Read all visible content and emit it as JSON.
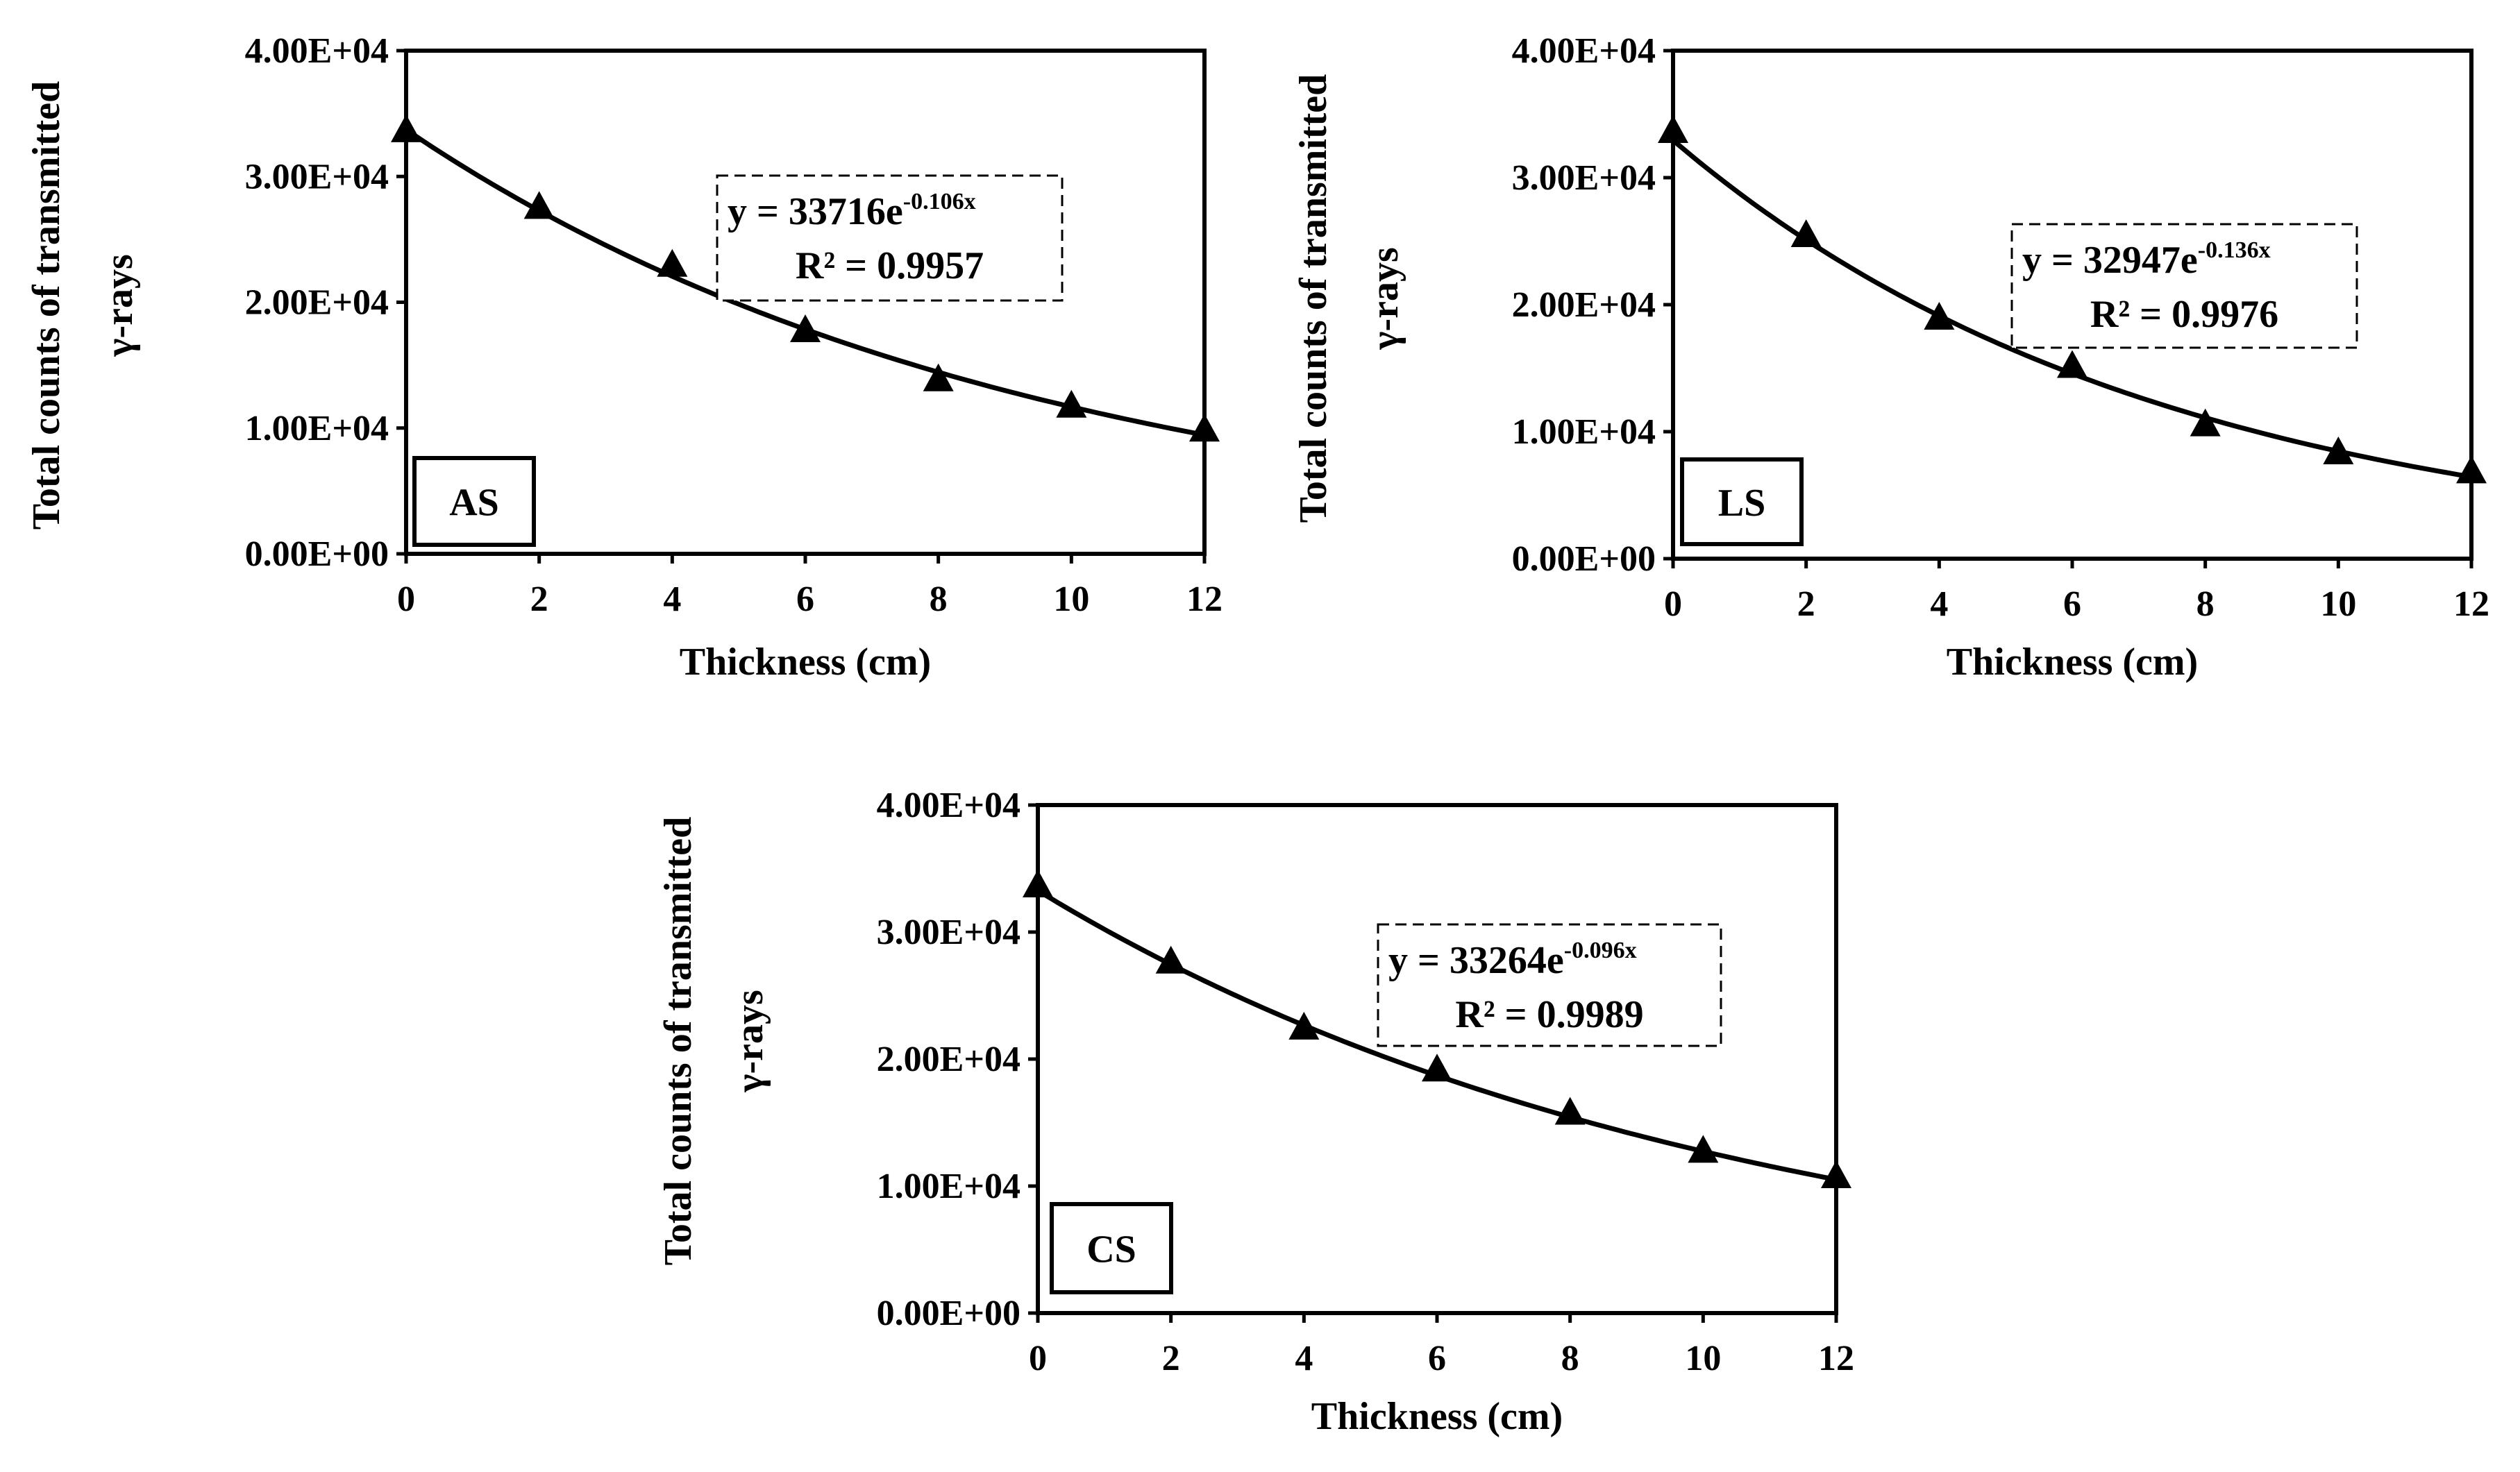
{
  "chart_data": [
    {
      "type": "scatter",
      "panel_label": "AS",
      "xlabel": "Thickness (cm)",
      "ylabel_line1": "Total counts of transmitted",
      "ylabel_line2": "γ-rays",
      "x": [
        0,
        2,
        4,
        6,
        8,
        10,
        12
      ],
      "y": [
        33500,
        27400,
        22800,
        17600,
        13700,
        11600,
        9700
      ],
      "xlim": [
        0,
        12
      ],
      "ylim": [
        0,
        40000
      ],
      "xticks": [
        "0",
        "2",
        "4",
        "6",
        "8",
        "10",
        "12"
      ],
      "yticks": [
        "0.00E+00",
        "1.00E+04",
        "2.00E+04",
        "3.00E+04",
        "4.00E+04"
      ],
      "marker": "triangle",
      "fit": {
        "type": "exponential",
        "a": 33716,
        "b": -0.106
      },
      "eq_base": "y = 33716e",
      "eq_exp": "-0.106x",
      "r2_text": "R² = 0.9957"
    },
    {
      "type": "scatter",
      "panel_label": "LS",
      "xlabel": "Thickness (cm)",
      "ylabel_line1": "Total counts of transmitted",
      "ylabel_line2": "γ-rays",
      "x": [
        0,
        2,
        4,
        6,
        8,
        10,
        12
      ],
      "y": [
        33500,
        25300,
        18800,
        15000,
        10400,
        8200,
        6700
      ],
      "xlim": [
        0,
        12
      ],
      "ylim": [
        0,
        40000
      ],
      "xticks": [
        "0",
        "2",
        "4",
        "6",
        "8",
        "10",
        "12"
      ],
      "yticks": [
        "0.00E+00",
        "1.00E+04",
        "2.00E+04",
        "3.00E+04",
        "4.00E+04"
      ],
      "marker": "triangle",
      "fit": {
        "type": "exponential",
        "a": 32947,
        "b": -0.136
      },
      "eq_base": "y = 32947e",
      "eq_exp": "-0.136x",
      "r2_text": "R² = 0.9976"
    },
    {
      "type": "scatter",
      "panel_label": "CS",
      "xlabel": "Thickness (cm)",
      "ylabel_line1": "Total counts of transmitted",
      "ylabel_line2": "γ-rays",
      "x": [
        0,
        2,
        4,
        6,
        8,
        10,
        12
      ],
      "y": [
        33500,
        27500,
        22300,
        19000,
        15600,
        12600,
        10600
      ],
      "xlim": [
        0,
        12
      ],
      "ylim": [
        0,
        40000
      ],
      "xticks": [
        "0",
        "2",
        "4",
        "6",
        "8",
        "10",
        "12"
      ],
      "yticks": [
        "0.00E+00",
        "1.00E+04",
        "2.00E+04",
        "3.00E+04",
        "4.00E+04"
      ],
      "marker": "triangle",
      "fit": {
        "type": "exponential",
        "a": 33264,
        "b": -0.096
      },
      "eq_base": "y = 33264e",
      "eq_exp": "-0.096x",
      "r2_text": "R² = 0.9989"
    }
  ]
}
